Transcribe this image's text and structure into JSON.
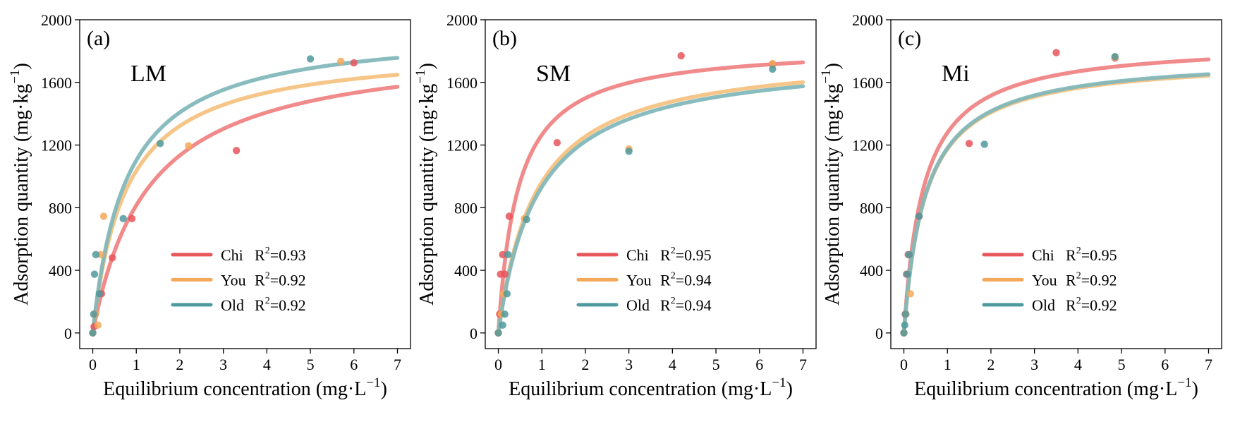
{
  "chart_data": [
    {
      "type": "scatter",
      "panel_letter": "(a)",
      "panel_name": "LM",
      "xlabel": {
        "text": "Equilibrium concentration (mg·L",
        "sup": "−1",
        "close": ")"
      },
      "ylabel": {
        "text": "Adsorption quantity (mg·kg",
        "sup": "−1",
        "close": ")"
      },
      "xlim": [
        -0.3,
        7.3
      ],
      "ylim": [
        -100,
        2000
      ],
      "xticks": [
        0,
        1,
        2,
        3,
        4,
        5,
        6,
        7
      ],
      "xtick_labels": [
        "0",
        "1",
        "2",
        "3",
        "4",
        "5",
        "6",
        "7"
      ],
      "yticks": [
        0,
        400,
        800,
        1200,
        1600,
        2000
      ],
      "ytick_labels": [
        "0",
        "400",
        "800",
        "1200",
        "1600",
        "2000"
      ],
      "legend_position": "lower-right",
      "series": [
        {
          "name": "Chi",
          "r2_prefix": "R",
          "r2_sup": "2",
          "r2_value": "=0.93",
          "color": "#f08080",
          "legend_color": "#e8555a",
          "fit": {
            "qmax": 1860,
            "K": 0.78
          },
          "points": [
            {
              "x": 0.0,
              "y": 0
            },
            {
              "x": 0.03,
              "y": 40
            },
            {
              "x": 0.06,
              "y": 120
            },
            {
              "x": 0.2,
              "y": 250
            },
            {
              "x": 0.45,
              "y": 480
            },
            {
              "x": 0.9,
              "y": 730
            },
            {
              "x": 3.3,
              "y": 1165
            },
            {
              "x": 6.0,
              "y": 1725
            }
          ]
        },
        {
          "name": "You",
          "r2_prefix": "R",
          "r2_sup": "2",
          "r2_value": "=0.92",
          "color": "#f5c07e",
          "legend_color": "#f4a95a",
          "fit": {
            "qmax": 1830,
            "K": 1.3
          },
          "points": [
            {
              "x": 0.0,
              "y": 0
            },
            {
              "x": 0.06,
              "y": 120
            },
            {
              "x": 0.12,
              "y": 50
            },
            {
              "x": 0.25,
              "y": 745
            },
            {
              "x": 0.18,
              "y": 500
            },
            {
              "x": 2.2,
              "y": 1195
            },
            {
              "x": 5.7,
              "y": 1735
            }
          ]
        },
        {
          "name": "Old",
          "r2_prefix": "R",
          "r2_sup": "2",
          "r2_value": "=0.92",
          "color": "#7fb6b8",
          "legend_color": "#4f9a9e",
          "fit": {
            "qmax": 1950,
            "K": 1.3
          },
          "points": [
            {
              "x": 0.0,
              "y": 0
            },
            {
              "x": 0.02,
              "y": 120
            },
            {
              "x": 0.04,
              "y": 375
            },
            {
              "x": 0.07,
              "y": 500
            },
            {
              "x": 0.15,
              "y": 250
            },
            {
              "x": 0.7,
              "y": 730
            },
            {
              "x": 1.55,
              "y": 1210
            },
            {
              "x": 5.0,
              "y": 1750
            }
          ]
        }
      ]
    },
    {
      "type": "scatter",
      "panel_letter": "(b)",
      "panel_name": "SM",
      "xlabel": {
        "text": "Equilibrium concentration (mg·L",
        "sup": "−1",
        "close": ")"
      },
      "ylabel": {
        "text": "Adsorption quantity (mg·kg",
        "sup": "−1",
        "close": ")"
      },
      "xlim": [
        -0.3,
        7.3
      ],
      "ylim": [
        -100,
        2000
      ],
      "xticks": [
        0,
        1,
        2,
        3,
        4,
        5,
        6,
        7
      ],
      "xtick_labels": [
        "0",
        "1",
        "2",
        "3",
        "4",
        "5",
        "6",
        "7"
      ],
      "yticks": [
        0,
        400,
        800,
        1200,
        1600,
        2000
      ],
      "ytick_labels": [
        "0",
        "400",
        "800",
        "1200",
        "1600",
        "2000"
      ],
      "legend_position": "lower-right",
      "series": [
        {
          "name": "Chi",
          "r2_prefix": "R",
          "r2_sup": "2",
          "r2_value": "=0.95",
          "color": "#f08080",
          "legend_color": "#e8555a",
          "fit": {
            "qmax": 1840,
            "K": 2.2
          },
          "points": [
            {
              "x": 0.0,
              "y": 0
            },
            {
              "x": 0.03,
              "y": 120
            },
            {
              "x": 0.05,
              "y": 375
            },
            {
              "x": 0.1,
              "y": 500
            },
            {
              "x": 0.15,
              "y": 375
            },
            {
              "x": 0.25,
              "y": 745
            },
            {
              "x": 1.35,
              "y": 1215
            },
            {
              "x": 4.2,
              "y": 1770
            },
            {
              "x": 6.3,
              "y": 1715
            }
          ]
        },
        {
          "name": "You",
          "r2_prefix": "R",
          "r2_sup": "2",
          "r2_value": "=0.94",
          "color": "#f5c07e",
          "legend_color": "#f4a95a",
          "fit": {
            "qmax": 1800,
            "K": 1.15
          },
          "points": [
            {
              "x": 0.0,
              "y": 0
            },
            {
              "x": 0.07,
              "y": 120
            },
            {
              "x": 0.12,
              "y": 250
            },
            {
              "x": 0.6,
              "y": 730
            },
            {
              "x": 3.0,
              "y": 1175
            },
            {
              "x": 6.3,
              "y": 1720
            }
          ]
        },
        {
          "name": "Old",
          "r2_prefix": "R",
          "r2_sup": "2",
          "r2_value": "=0.94",
          "color": "#7fb6b8",
          "legend_color": "#4f9a9e",
          "fit": {
            "qmax": 1780,
            "K": 1.1
          },
          "points": [
            {
              "x": 0.0,
              "y": 0
            },
            {
              "x": 0.1,
              "y": 50
            },
            {
              "x": 0.15,
              "y": 120
            },
            {
              "x": 0.2,
              "y": 250
            },
            {
              "x": 0.22,
              "y": 500
            },
            {
              "x": 0.65,
              "y": 725
            },
            {
              "x": 3.0,
              "y": 1160
            },
            {
              "x": 6.3,
              "y": 1685
            }
          ]
        }
      ]
    },
    {
      "type": "scatter",
      "panel_letter": "(c)",
      "panel_name": "Mi",
      "xlabel": {
        "text": "Equilibrium concentration (mg·L",
        "sup": "−1",
        "close": ")"
      },
      "ylabel": {
        "text": "Adsorption quantity (mg·kg",
        "sup": "−1",
        "close": ")"
      },
      "xlim": [
        -0.3,
        7.3
      ],
      "ylim": [
        -100,
        2000
      ],
      "xticks": [
        0,
        1,
        2,
        3,
        4,
        5,
        6,
        7
      ],
      "xtick_labels": [
        "0",
        "1",
        "2",
        "3",
        "4",
        "5",
        "6",
        "7"
      ],
      "yticks": [
        0,
        400,
        800,
        1200,
        1600,
        2000
      ],
      "ytick_labels": [
        "0",
        "400",
        "800",
        "1200",
        "1600",
        "2000"
      ],
      "legend_position": "lower-right",
      "series": [
        {
          "name": "Chi",
          "r2_prefix": "R",
          "r2_sup": "2",
          "r2_value": "=0.95",
          "color": "#f08080",
          "legend_color": "#e8555a",
          "fit": {
            "qmax": 1860,
            "K": 2.2
          },
          "points": [
            {
              "x": 0.0,
              "y": 0
            },
            {
              "x": 0.03,
              "y": 120
            },
            {
              "x": 0.06,
              "y": 375
            },
            {
              "x": 0.1,
              "y": 500
            },
            {
              "x": 0.35,
              "y": 745
            },
            {
              "x": 1.5,
              "y": 1210
            },
            {
              "x": 3.5,
              "y": 1790
            },
            {
              "x": 4.85,
              "y": 1755
            }
          ]
        },
        {
          "name": "You",
          "r2_prefix": "R",
          "r2_sup": "2",
          "r2_value": "=0.92",
          "color": "#f5c07e",
          "legend_color": "#f4a95a",
          "fit": {
            "qmax": 1760,
            "K": 2.0
          },
          "points": [
            {
              "x": 0.0,
              "y": 0
            },
            {
              "x": 0.05,
              "y": 120
            },
            {
              "x": 0.15,
              "y": 250
            },
            {
              "x": 4.85,
              "y": 1760
            }
          ]
        },
        {
          "name": "Old",
          "r2_prefix": "R",
          "r2_sup": "2",
          "r2_value": "=0.92",
          "color": "#7fb6b8",
          "legend_color": "#4f9a9e",
          "fit": {
            "qmax": 1770,
            "K": 2.0
          },
          "points": [
            {
              "x": 0.0,
              "y": 0
            },
            {
              "x": 0.02,
              "y": 50
            },
            {
              "x": 0.04,
              "y": 120
            },
            {
              "x": 0.08,
              "y": 375
            },
            {
              "x": 0.12,
              "y": 500
            },
            {
              "x": 0.35,
              "y": 745
            },
            {
              "x": 1.85,
              "y": 1205
            },
            {
              "x": 4.85,
              "y": 1765
            }
          ]
        }
      ]
    }
  ]
}
